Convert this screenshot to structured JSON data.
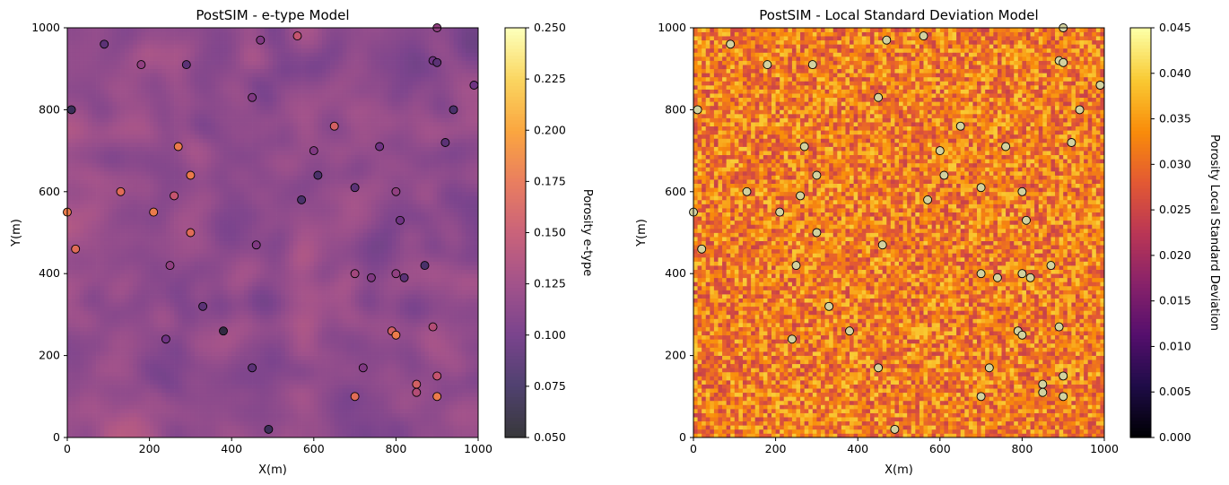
{
  "chart_data": [
    {
      "type": "heatmap",
      "title": "PostSIM - e-type Model",
      "xlabel": "X(m)",
      "ylabel": "Y(m)",
      "xlim": [
        0,
        1000
      ],
      "ylim": [
        0,
        1000
      ],
      "xticks": [
        "0",
        "200",
        "400",
        "600",
        "800",
        "1000"
      ],
      "yticks": [
        "0",
        "200",
        "400",
        "600",
        "800",
        "1000"
      ],
      "colormap": "inferno",
      "colorbar": {
        "label": "Porosity e-type",
        "min": 0.05,
        "max": 0.25,
        "ticks": [
          "0.050",
          "0.075",
          "0.100",
          "0.125",
          "0.150",
          "0.175",
          "0.200",
          "0.225",
          "0.250"
        ]
      },
      "grid_cells": 100,
      "field_mean": 0.115,
      "field_spread": 0.022,
      "grid": false
    },
    {
      "type": "heatmap",
      "title": "PostSIM - Local Standard Deviation Model",
      "xlabel": "X(m)",
      "ylabel": "Y(m)",
      "xlim": [
        0,
        1000
      ],
      "ylim": [
        0,
        1000
      ],
      "xticks": [
        "0",
        "200",
        "400",
        "600",
        "800",
        "1000"
      ],
      "yticks": [
        "0",
        "200",
        "400",
        "600",
        "800",
        "1000"
      ],
      "colormap": "inferno",
      "colorbar": {
        "label": "Porosity Local Standard Deviation",
        "min": 0.0,
        "max": 0.045,
        "ticks": [
          "0.000",
          "0.005",
          "0.010",
          "0.015",
          "0.020",
          "0.025",
          "0.030",
          "0.035",
          "0.040",
          "0.045"
        ]
      },
      "grid_cells": 100,
      "field_mean": 0.032,
      "field_spread": 0.006,
      "grid": false
    }
  ],
  "wells": [
    {
      "x": 90,
      "y": 960,
      "v": 0.09
    },
    {
      "x": 180,
      "y": 910,
      "v": 0.12
    },
    {
      "x": 290,
      "y": 910,
      "v": 0.09
    },
    {
      "x": 470,
      "y": 970,
      "v": 0.11
    },
    {
      "x": 560,
      "y": 980,
      "v": 0.15
    },
    {
      "x": 900,
      "y": 1000,
      "v": 0.12
    },
    {
      "x": 890,
      "y": 920,
      "v": 0.1
    },
    {
      "x": 900,
      "y": 915,
      "v": 0.09
    },
    {
      "x": 990,
      "y": 860,
      "v": 0.1
    },
    {
      "x": 10,
      "y": 800,
      "v": 0.07
    },
    {
      "x": 450,
      "y": 830,
      "v": 0.11
    },
    {
      "x": 940,
      "y": 800,
      "v": 0.08
    },
    {
      "x": 650,
      "y": 760,
      "v": 0.16
    },
    {
      "x": 920,
      "y": 720,
      "v": 0.09
    },
    {
      "x": 270,
      "y": 710,
      "v": 0.18
    },
    {
      "x": 600,
      "y": 700,
      "v": 0.11
    },
    {
      "x": 760,
      "y": 710,
      "v": 0.1
    },
    {
      "x": 300,
      "y": 640,
      "v": 0.18
    },
    {
      "x": 610,
      "y": 640,
      "v": 0.08
    },
    {
      "x": 130,
      "y": 600,
      "v": 0.17
    },
    {
      "x": 260,
      "y": 590,
      "v": 0.15
    },
    {
      "x": 570,
      "y": 580,
      "v": 0.08
    },
    {
      "x": 700,
      "y": 610,
      "v": 0.09
    },
    {
      "x": 800,
      "y": 600,
      "v": 0.12
    },
    {
      "x": 0,
      "y": 550,
      "v": 0.18
    },
    {
      "x": 210,
      "y": 550,
      "v": 0.18
    },
    {
      "x": 810,
      "y": 530,
      "v": 0.1
    },
    {
      "x": 300,
      "y": 500,
      "v": 0.17
    },
    {
      "x": 20,
      "y": 460,
      "v": 0.17
    },
    {
      "x": 460,
      "y": 470,
      "v": 0.11
    },
    {
      "x": 250,
      "y": 420,
      "v": 0.12
    },
    {
      "x": 870,
      "y": 420,
      "v": 0.08
    },
    {
      "x": 700,
      "y": 400,
      "v": 0.13
    },
    {
      "x": 740,
      "y": 390,
      "v": 0.11
    },
    {
      "x": 800,
      "y": 400,
      "v": 0.12
    },
    {
      "x": 820,
      "y": 390,
      "v": 0.09
    },
    {
      "x": 330,
      "y": 320,
      "v": 0.09
    },
    {
      "x": 380,
      "y": 260,
      "v": 0.06
    },
    {
      "x": 790,
      "y": 260,
      "v": 0.16
    },
    {
      "x": 800,
      "y": 250,
      "v": 0.18
    },
    {
      "x": 890,
      "y": 270,
      "v": 0.14
    },
    {
      "x": 240,
      "y": 240,
      "v": 0.1
    },
    {
      "x": 450,
      "y": 170,
      "v": 0.09
    },
    {
      "x": 720,
      "y": 170,
      "v": 0.11
    },
    {
      "x": 900,
      "y": 150,
      "v": 0.15
    },
    {
      "x": 850,
      "y": 130,
      "v": 0.16
    },
    {
      "x": 850,
      "y": 110,
      "v": 0.14
    },
    {
      "x": 700,
      "y": 100,
      "v": 0.17
    },
    {
      "x": 900,
      "y": 100,
      "v": 0.18
    },
    {
      "x": 490,
      "y": 20,
      "v": 0.07
    }
  ]
}
